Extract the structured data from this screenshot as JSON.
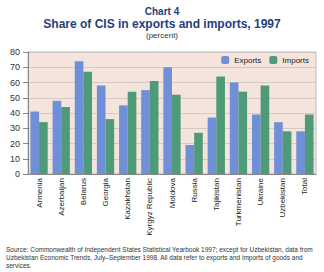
{
  "chart_data": {
    "type": "bar",
    "chart_label": "Chart 4",
    "title": "Share of CIS in exports and imports, 1997",
    "subtitle": "(percent)",
    "categories": [
      "Armenia",
      "Azerbaijan",
      "Belarus",
      "Georgia",
      "Kazakhstan",
      "Kyrgyz Republic",
      "Moldova",
      "Russia",
      "Tajikistan",
      "Turkmenistan",
      "Ukraine",
      "Uzbekistan",
      "Total"
    ],
    "series": [
      {
        "name": "Exports",
        "color": "#6f8fd9",
        "values": [
          41,
          48,
          74,
          58,
          45,
          55,
          70,
          19,
          37,
          60,
          39,
          34,
          28
        ]
      },
      {
        "name": "Imports",
        "color": "#4f9a78",
        "values": [
          34,
          44,
          67,
          36,
          54,
          61,
          52,
          27,
          64,
          54,
          58,
          28,
          39
        ]
      }
    ],
    "ylim": [
      0,
      80
    ],
    "yticks": [
      0,
      10,
      20,
      30,
      40,
      50,
      60,
      70,
      80
    ],
    "grid": true,
    "legend": "upper right",
    "note": "Source: Commonwealth of Independent States Statistical Yearbook 1997; except for Uzbekistan, data from Uzbekistan Economic Trends, July–September 1998. All data refer to exports and imports of goods and services."
  }
}
